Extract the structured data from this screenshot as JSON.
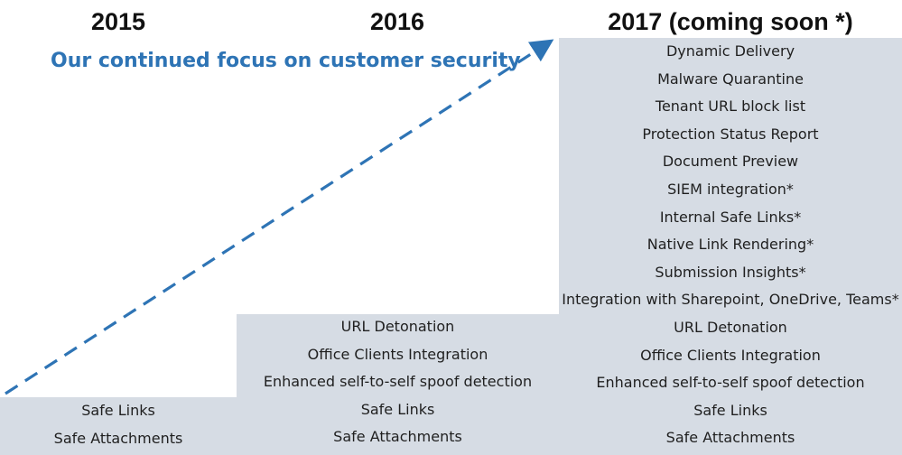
{
  "years": {
    "y2015": "2015",
    "y2016": "2016",
    "y2017": "2017 (coming soon *)"
  },
  "headline": "Our continued focus on customer security",
  "colors": {
    "block": "#d6dce4",
    "accent": "#2e74b5",
    "arrow": "#2e74b5"
  },
  "columns": {
    "c2015": [
      "Safe Links",
      "Safe Attachments"
    ],
    "c2016": [
      "URL Detonation",
      "Office Clients Integration",
      "Enhanced self-to-self spoof detection",
      "Safe Links",
      "Safe Attachments"
    ],
    "c2017": [
      "Dynamic Delivery",
      "Malware Quarantine",
      "Tenant URL block list",
      "Protection Status Report",
      "Document Preview",
      "SIEM integration*",
      "Internal Safe Links*",
      "Native Link Rendering*",
      "Submission Insights*",
      "Integration with Sharepoint, OneDrive, Teams*",
      "URL Detonation",
      "Office Clients Integration",
      "Enhanced self-to-self spoof detection",
      "Safe Links",
      "Safe Attachments"
    ]
  }
}
